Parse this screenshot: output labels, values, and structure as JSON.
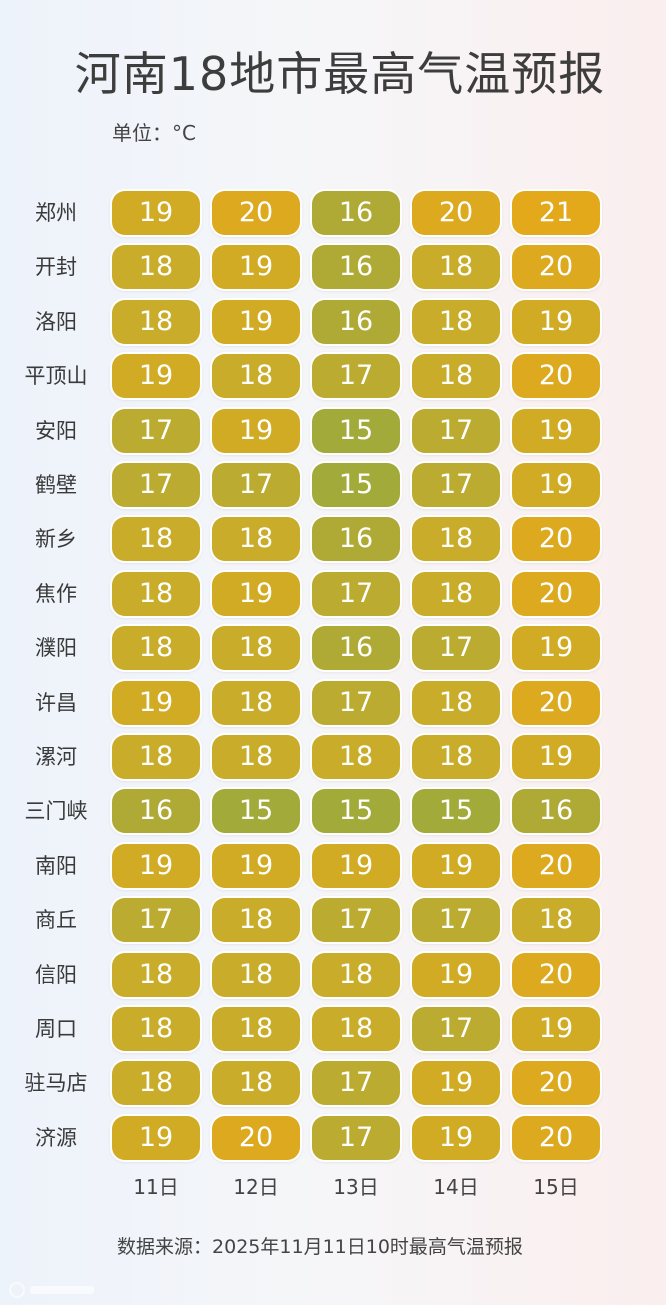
{
  "title": "河南18地市最高气温预报",
  "unit_label": "单位：°C",
  "source": "数据来源：2025年11月11日10时最高气温预报",
  "chart_data": {
    "type": "heatmap",
    "title": "河南18地市最高气温预报",
    "unit": "°C",
    "x": [
      "11日",
      "12日",
      "13日",
      "14日",
      "15日"
    ],
    "y": [
      "郑州",
      "开封",
      "洛阳",
      "平顶山",
      "安阳",
      "鹤壁",
      "新乡",
      "焦作",
      "濮阳",
      "许昌",
      "漯河",
      "三门峡",
      "南阳",
      "商丘",
      "信阳",
      "周口",
      "驻马店",
      "济源"
    ],
    "values": [
      [
        19,
        20,
        16,
        20,
        21
      ],
      [
        18,
        19,
        16,
        18,
        20
      ],
      [
        18,
        19,
        16,
        18,
        19
      ],
      [
        19,
        18,
        17,
        18,
        20
      ],
      [
        17,
        19,
        15,
        17,
        19
      ],
      [
        17,
        17,
        15,
        17,
        19
      ],
      [
        18,
        18,
        16,
        18,
        20
      ],
      [
        18,
        19,
        17,
        18,
        20
      ],
      [
        18,
        18,
        16,
        17,
        19
      ],
      [
        19,
        18,
        17,
        18,
        20
      ],
      [
        18,
        18,
        18,
        18,
        19
      ],
      [
        16,
        15,
        15,
        15,
        16
      ],
      [
        19,
        19,
        19,
        19,
        20
      ],
      [
        17,
        18,
        17,
        17,
        18
      ],
      [
        18,
        18,
        18,
        19,
        20
      ],
      [
        18,
        18,
        18,
        17,
        19
      ],
      [
        18,
        18,
        17,
        19,
        20
      ],
      [
        19,
        20,
        17,
        19,
        20
      ]
    ],
    "color_scale": {
      "15": "#a2aa3a",
      "16": "#afaa36",
      "17": "#bcab31",
      "18": "#c8ac2a",
      "19": "#d2ab24",
      "20": "#dca91f",
      "21": "#e3a91a"
    }
  }
}
